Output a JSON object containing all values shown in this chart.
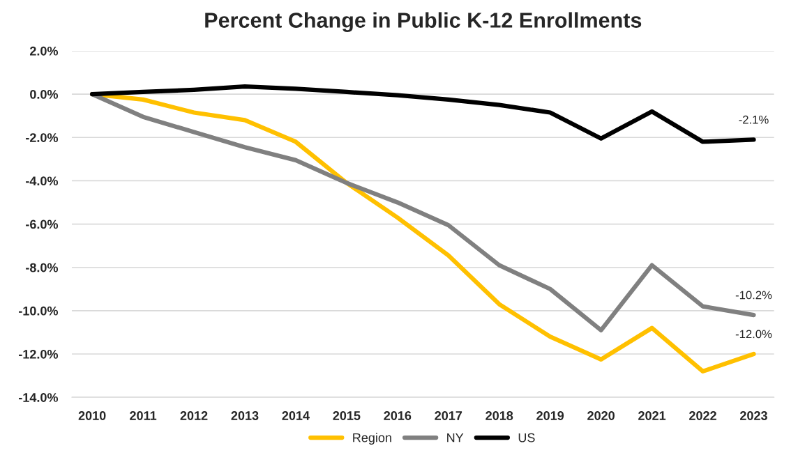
{
  "chart_data": {
    "type": "line",
    "title": "Percent Change in Public K-12 Enrollments",
    "categories": [
      "2010",
      "2011",
      "2012",
      "2013",
      "2014",
      "2015",
      "2016",
      "2017",
      "2018",
      "2019",
      "2020",
      "2021",
      "2022",
      "2023"
    ],
    "series": [
      {
        "name": "Region",
        "color": "#ffc000",
        "values": [
          0,
          -0.25,
          -0.85,
          -1.2,
          -2.2,
          -4.1,
          -5.7,
          -7.45,
          -9.7,
          -11.2,
          -12.25,
          -10.8,
          -12.8,
          -12.0
        ],
        "value_labels": [
          null,
          null,
          null,
          null,
          null,
          null,
          null,
          null,
          null,
          null,
          null,
          null,
          null,
          "-12.0%"
        ]
      },
      {
        "name": "NY",
        "color": "#808080",
        "values": [
          0,
          -1.05,
          -1.75,
          -2.45,
          -3.05,
          -4.1,
          -5.0,
          -6.05,
          -7.9,
          -9.0,
          -10.9,
          -7.9,
          -9.8,
          -10.2
        ],
        "value_labels": [
          null,
          null,
          null,
          null,
          null,
          null,
          null,
          null,
          null,
          null,
          null,
          null,
          null,
          "-10.2%"
        ]
      },
      {
        "name": "US",
        "color": "#000000",
        "values": [
          0,
          0.1,
          0.2,
          0.35,
          0.25,
          0.1,
          -0.05,
          -0.25,
          -0.5,
          -0.85,
          -2.05,
          -0.8,
          -2.2,
          -2.1
        ],
        "value_labels": [
          null,
          null,
          null,
          null,
          null,
          null,
          null,
          null,
          null,
          null,
          null,
          null,
          null,
          "-2.1%"
        ]
      }
    ],
    "ylim": [
      -14,
      2
    ],
    "yticks": [
      {
        "value": 2,
        "label": "2.0%"
      },
      {
        "value": 0,
        "label": "0.0%"
      },
      {
        "value": -2,
        "label": "-2.0%"
      },
      {
        "value": -4,
        "label": "-4.0%"
      },
      {
        "value": -6,
        "label": "-6.0%"
      },
      {
        "value": -8,
        "label": "-8.0%"
      },
      {
        "value": -10,
        "label": "-10.0%"
      },
      {
        "value": -12,
        "label": "-12.0%"
      },
      {
        "value": -14,
        "label": "-14.0%"
      }
    ],
    "grid": "y",
    "legend": "bottom",
    "marker": "none",
    "line_style": "solid"
  }
}
